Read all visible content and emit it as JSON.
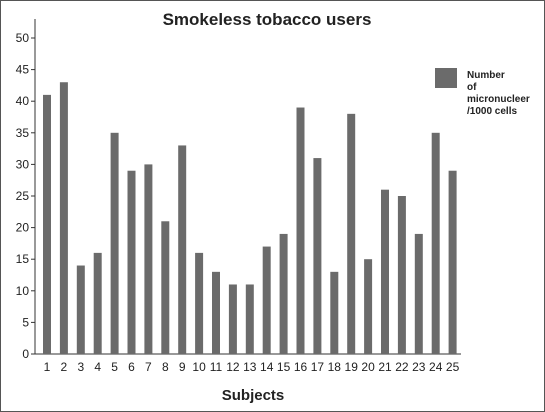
{
  "chart_data": {
    "type": "bar",
    "title": "Smokeless tobacco users",
    "xlabel": "Subjects",
    "ylabel": "",
    "ylim": [
      0,
      50
    ],
    "yticks": [
      0,
      5,
      10,
      15,
      20,
      25,
      30,
      35,
      40,
      45,
      50
    ],
    "grid": false,
    "legend_position": "right",
    "categories": [
      "1",
      "2",
      "3",
      "4",
      "5",
      "6",
      "7",
      "8",
      "9",
      "10",
      "11",
      "12",
      "13",
      "14",
      "15",
      "16",
      "17",
      "18",
      "19",
      "20",
      "21",
      "22",
      "23",
      "24",
      "25"
    ],
    "series": [
      {
        "name": "Number of micronucleer /1000 cells",
        "legend_lines": [
          "Number",
          "of",
          "micronucleer",
          "/1000 cells"
        ],
        "color": "#6b6b6b",
        "values": [
          41,
          43,
          14,
          16,
          35,
          29,
          30,
          21,
          33,
          16,
          13,
          11,
          11,
          17,
          19,
          39,
          31,
          13,
          38,
          15,
          26,
          25,
          19,
          35,
          29
        ]
      }
    ]
  }
}
